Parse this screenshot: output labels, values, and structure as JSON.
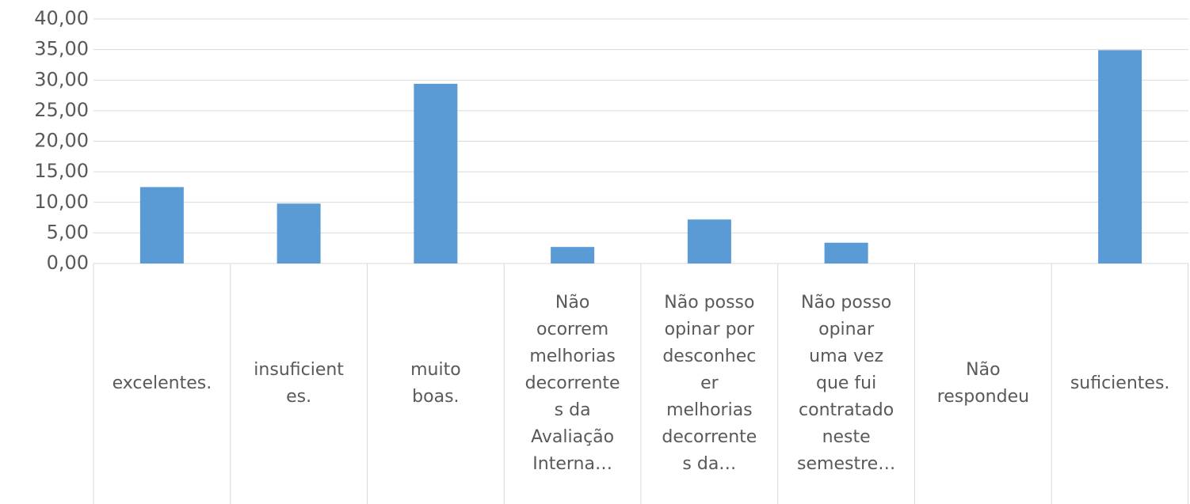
{
  "chart_data": {
    "type": "bar",
    "categories": [
      "excelentes.",
      "insuficient\nes.",
      "muito\nboas.",
      "Não\nocorrem\nmelhorias\ndecorrente\ns da\nAvaliação\nInterna…",
      "Não posso\nopinar por\ndesconhec\ner\nmelhorias\ndecorrente\ns da…",
      "Não posso\nopinar\numa vez\nque fui\ncontratado\nneste\nsemestre…",
      "Não\nrespondeu",
      "suficientes."
    ],
    "values": [
      12.5,
      9.8,
      29.4,
      2.7,
      7.2,
      3.4,
      0,
      34.9
    ],
    "color": "#5b9bd5",
    "ylim": [
      0,
      40
    ],
    "yticks": [
      {
        "value": 0,
        "label": "0,00"
      },
      {
        "value": 5,
        "label": "5,00"
      },
      {
        "value": 10,
        "label": "10,00"
      },
      {
        "value": 15,
        "label": "15,00"
      },
      {
        "value": 20,
        "label": "20,00"
      },
      {
        "value": 25,
        "label": "25,00"
      },
      {
        "value": 30,
        "label": "30,00"
      },
      {
        "value": 35,
        "label": "35,00"
      },
      {
        "value": 40,
        "label": "40,00"
      }
    ],
    "grid": true
  }
}
